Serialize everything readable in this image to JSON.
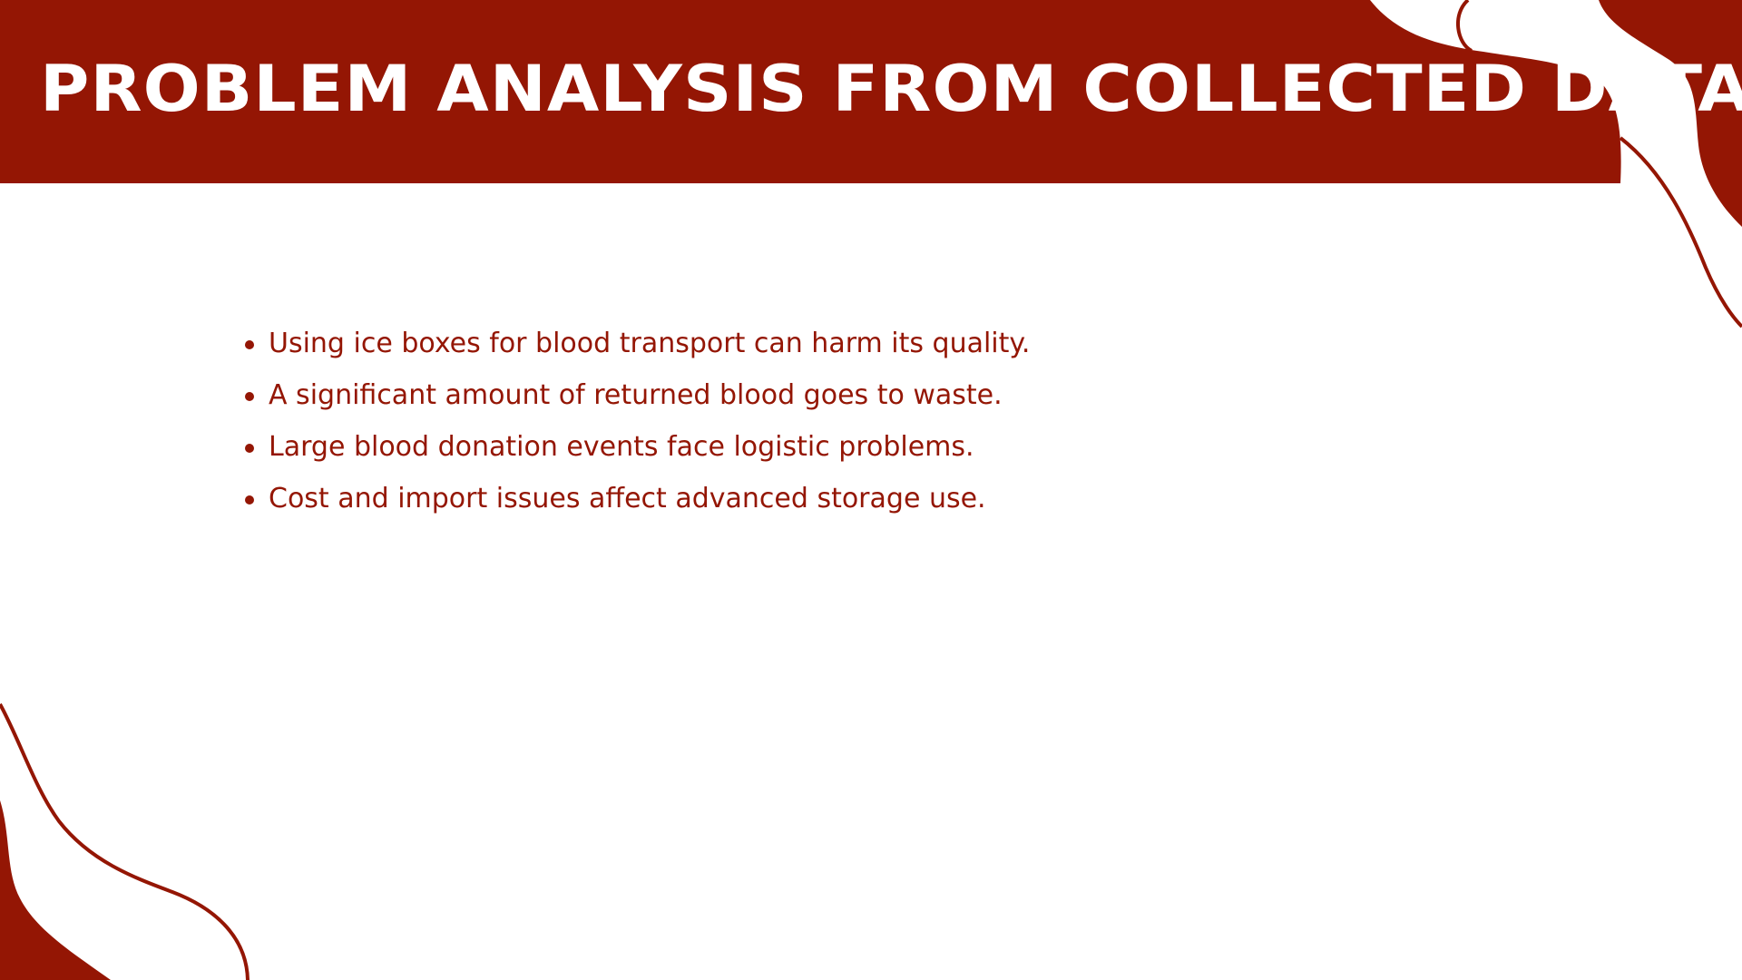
{
  "slide": {
    "title": "PROBLEM ANALYSIS FROM COLLECTED DATA",
    "bullets": [
      "Using ice boxes for blood transport can harm its quality.",
      "A significant amount of returned blood goes to waste.",
      "Large blood donation events face logistic problems.",
      "Cost and import issues affect advanced storage use."
    ]
  },
  "colors": {
    "accent": "#941604",
    "background": "#ffffff",
    "title_text": "#ffffff"
  }
}
